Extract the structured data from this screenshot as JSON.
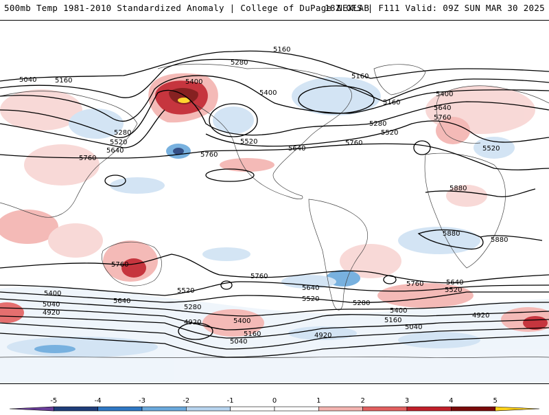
{
  "header": {
    "left": "500mb Temp 1981-2010 Standardized Anomaly | College of DuPage NEXLAB",
    "right": "18Z GFS | F111 Valid: 09Z SUN MAR 30 2025"
  },
  "contour_labels": [
    {
      "id": "c5160-top",
      "text": "5160"
    },
    {
      "id": "c5040-w",
      "text": "5040"
    },
    {
      "id": "c5160-w",
      "text": "5160"
    },
    {
      "id": "c5280-n",
      "text": "5280"
    },
    {
      "id": "c5400-ak",
      "text": "5400"
    },
    {
      "id": "c5400-can",
      "text": "5400"
    },
    {
      "id": "c5160-hb",
      "text": "5160"
    },
    {
      "id": "c5160-gr",
      "text": "5160"
    },
    {
      "id": "c5400-eu",
      "text": "5400"
    },
    {
      "id": "c5640-eu",
      "text": "5640"
    },
    {
      "id": "c5760-eu",
      "text": "5760"
    },
    {
      "id": "c5280-asia",
      "text": "5280"
    },
    {
      "id": "c5520-asia",
      "text": "5520"
    },
    {
      "id": "c5640-asia",
      "text": "5640"
    },
    {
      "id": "c5520-pac",
      "text": "5520"
    },
    {
      "id": "c5760-pac",
      "text": "5760"
    },
    {
      "id": "c5280-us",
      "text": "5280"
    },
    {
      "id": "c5520-us",
      "text": "5520"
    },
    {
      "id": "c5640-us",
      "text": "5640"
    },
    {
      "id": "c5760-atl",
      "text": "5760"
    },
    {
      "id": "c5520-eur2",
      "text": "5520"
    },
    {
      "id": "c5760-asia2",
      "text": "5760"
    },
    {
      "id": "c5880-af",
      "text": "5880"
    },
    {
      "id": "c5880-io",
      "text": "5880"
    },
    {
      "id": "c5880-io2",
      "text": "5880"
    },
    {
      "id": "c5760-au",
      "text": "5760"
    },
    {
      "id": "c5760-sp",
      "text": "5760"
    },
    {
      "id": "c5640-sa",
      "text": "5640"
    },
    {
      "id": "c5760-sa",
      "text": "5760"
    },
    {
      "id": "c5640-sai",
      "text": "5640"
    },
    {
      "id": "c5520-sai",
      "text": "5520"
    },
    {
      "id": "c5400-sw",
      "text": "5400"
    },
    {
      "id": "c5040-sw",
      "text": "5040"
    },
    {
      "id": "c4920-sw",
      "text": "4920"
    },
    {
      "id": "c5640-sw",
      "text": "5640"
    },
    {
      "id": "c5520-s1",
      "text": "5520"
    },
    {
      "id": "c5280-s1",
      "text": "5280"
    },
    {
      "id": "c4920-s1",
      "text": "4920"
    },
    {
      "id": "c5400-s2",
      "text": "5400"
    },
    {
      "id": "c5160-s2",
      "text": "5160"
    },
    {
      "id": "c5040-s2",
      "text": "5040"
    },
    {
      "id": "c5520-s3",
      "text": "5520"
    },
    {
      "id": "c5280-s3",
      "text": "5280"
    },
    {
      "id": "c4920-s3",
      "text": "4920"
    },
    {
      "id": "c5400-s4",
      "text": "5400"
    },
    {
      "id": "c5160-s4",
      "text": "5160"
    },
    {
      "id": "c5040-s4",
      "text": "5040"
    },
    {
      "id": "c4920-s4",
      "text": "4920"
    }
  ],
  "legend": {
    "ticks": [
      "-5",
      "-4",
      "-3",
      "-2",
      "-1",
      "0",
      "1",
      "2",
      "3",
      "4",
      "5"
    ],
    "colors": [
      "#6a3d9a",
      "#1f3d7a",
      "#2f78c4",
      "#6aa9dc",
      "#b7d4ee",
      "#ffffff",
      "#ffffff",
      "#f3b3b0",
      "#e26060",
      "#c0202a",
      "#7a0a0a",
      "#ffd21a"
    ]
  }
}
